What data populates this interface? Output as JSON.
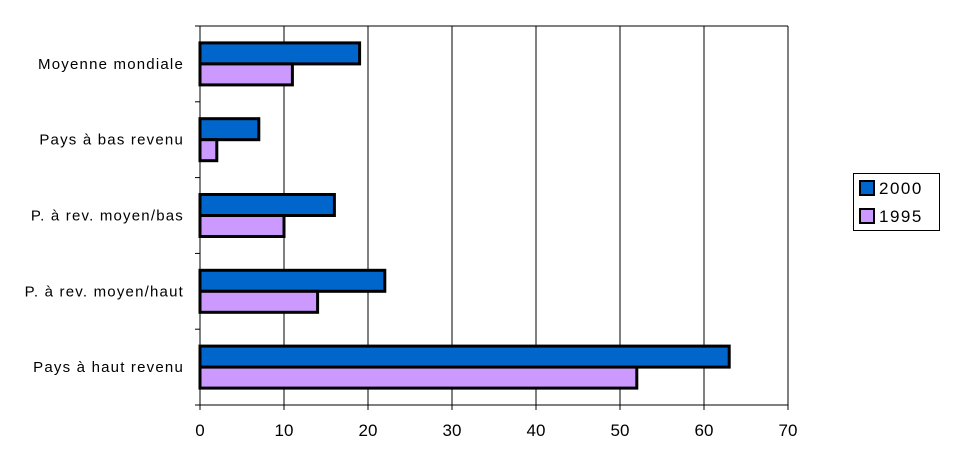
{
  "chart_data": {
    "type": "bar",
    "orientation": "horizontal",
    "title": "",
    "xlabel": "",
    "ylabel": "",
    "categories": [
      "Moyenne mondiale",
      "Pays à bas revenu",
      "P. à rev. moyen/bas",
      "P. à rev. moyen/haut",
      "Pays à haut revenu"
    ],
    "series": [
      {
        "name": "2000",
        "color": "#0066cc",
        "values": [
          19,
          7,
          16,
          22,
          63
        ]
      },
      {
        "name": "1995",
        "color": "#cc99ff",
        "values": [
          11,
          2,
          10,
          14,
          52
        ]
      }
    ],
    "xlim": [
      0,
      70
    ],
    "xticks": [
      0,
      10,
      20,
      30,
      40,
      50,
      60,
      70
    ],
    "grid": "vertical",
    "legend_position": "right"
  }
}
